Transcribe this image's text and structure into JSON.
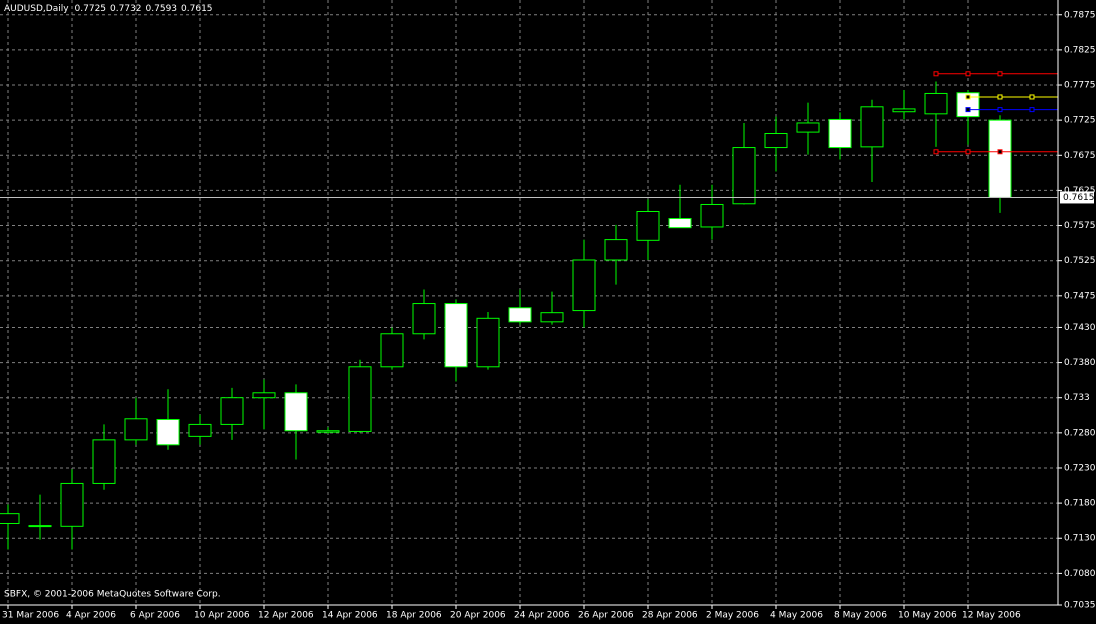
{
  "chart_data": {
    "type": "candlestick",
    "title": "AUDUSD,Daily",
    "footer": "SBFX, © 2001-2006 MetaQuotes Software Corp.",
    "categories": [
      "31 Mar 2006",
      null,
      "4 Apr 2006",
      null,
      "6 Apr 2006",
      null,
      "10 Apr 2006",
      null,
      "12 Apr 2006",
      null,
      "14 Apr 2006",
      null,
      "18 Apr 2006",
      null,
      "20 Apr 2006",
      null,
      "24 Apr 2006",
      null,
      "26 Apr 2006",
      null,
      "28 Apr 2006",
      null,
      "2 May 2006",
      null,
      "4 May 2006",
      null,
      "8 May 2006",
      null,
      "10 May 2006",
      null,
      "12 May 2006",
      null
    ],
    "open": [
      0.7151,
      0.7147,
      0.7147,
      0.7208,
      0.727,
      0.7299,
      0.7275,
      0.7292,
      0.733,
      0.7337,
      0.7281,
      0.7282,
      0.7374,
      0.7421,
      0.7464,
      0.7374,
      0.7458,
      0.7438,
      0.7454,
      0.7526,
      0.7554,
      0.7585,
      0.7573,
      0.7606,
      0.7686,
      0.7708,
      0.7726,
      0.7687,
      0.7737,
      0.7734,
      0.7764,
      0.7725
    ],
    "high": [
      0.7178,
      0.7192,
      0.7228,
      0.7292,
      0.733,
      0.7342,
      0.7306,
      0.7344,
      0.7356,
      0.7349,
      0.7288,
      0.7384,
      0.743,
      0.7484,
      0.747,
      0.7452,
      0.7484,
      0.7481,
      0.7555,
      0.7576,
      0.7612,
      0.7633,
      0.7633,
      0.7721,
      0.773,
      0.775,
      0.7736,
      0.7754,
      0.7768,
      0.778,
      0.7768,
      0.7732
    ],
    "low": [
      0.7114,
      0.7128,
      0.7114,
      0.7199,
      0.7263,
      0.7256,
      0.7263,
      0.727,
      0.7285,
      0.7242,
      0.7279,
      0.728,
      0.737,
      0.7413,
      0.7353,
      0.737,
      0.7434,
      0.7434,
      0.743,
      0.7491,
      0.7526,
      0.7572,
      0.7555,
      0.7605,
      0.7652,
      0.7676,
      0.7669,
      0.7637,
      0.7726,
      0.7687,
      0.769,
      0.7593
    ],
    "close": [
      0.7165,
      0.7148,
      0.7208,
      0.727,
      0.73,
      0.7263,
      0.7292,
      0.733,
      0.7337,
      0.7283,
      0.7283,
      0.7374,
      0.7421,
      0.7464,
      0.7374,
      0.7443,
      0.7438,
      0.7451,
      0.7526,
      0.7555,
      0.7595,
      0.7572,
      0.7605,
      0.7686,
      0.7706,
      0.7721,
      0.7686,
      0.7744,
      0.7741,
      0.7763,
      0.773,
      0.7615
    ],
    "up_color": "#000000",
    "down_color": "#ffffff",
    "wick_color": "#00ff00",
    "levels": [
      {
        "value": 0.7791,
        "color": "#ff0000"
      },
      {
        "value": 0.768,
        "color": "#ff0000"
      },
      {
        "value": 0.7758,
        "color": "#ffff00"
      },
      {
        "value": 0.774,
        "color": "#0000ff"
      }
    ],
    "ylim": [
      0.7035,
      0.7896
    ],
    "yticks": [
      0.7875,
      0.7825,
      0.7775,
      0.7725,
      0.7675,
      0.7625,
      0.7575,
      0.7525,
      0.7475,
      {
        "value": 0.743,
        "label": "0.7430"
      },
      {
        "value": 0.738,
        "label": "0.7380"
      },
      0.733,
      {
        "value": 0.728,
        "label": "0.7280"
      },
      {
        "value": 0.723,
        "label": "0.7230"
      },
      {
        "value": 0.718,
        "label": "0.7180"
      },
      {
        "value": 0.713,
        "label": "0.7130"
      },
      {
        "value": 0.708,
        "label": "0.7080"
      },
      0.7035
    ],
    "grid": true
  }
}
